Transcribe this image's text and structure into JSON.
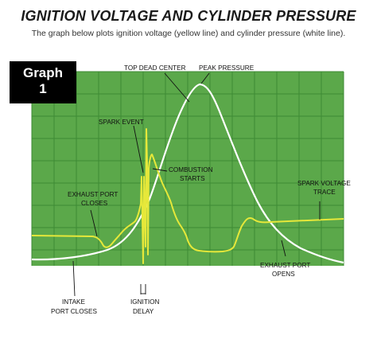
{
  "header": {
    "title": "IGNITION VOLTAGE AND CYLINDER PRESSURE",
    "subtitle": "The graph below plots ignition voltage (yellow line) and cylinder pressure (white line)."
  },
  "badge": {
    "line1": "Graph",
    "line2": "1"
  },
  "colors": {
    "plot_bg": "#5ba84a",
    "grid": "#3e8a34",
    "voltage": "#e6e83a",
    "pressure": "#ffffff"
  },
  "chart_data": {
    "type": "line",
    "title": "IGNITION VOLTAGE AND CYLINDER PRESSURE",
    "grid": true,
    "series": [
      {
        "name": "ignition voltage (yellow line)",
        "color": "#e6e83a"
      },
      {
        "name": "cylinder pressure (white line)",
        "color": "#ffffff"
      }
    ],
    "annotations": [
      {
        "id": "top-dead-center",
        "text": "TOP DEAD CENTER"
      },
      {
        "id": "peak-pressure",
        "text": "PEAK PRESSURE"
      },
      {
        "id": "spark-event",
        "text": "SPARK EVENT"
      },
      {
        "id": "combustion-starts",
        "lines": [
          "COMBUSTION",
          "STARTS"
        ]
      },
      {
        "id": "spark-voltage-trace",
        "lines": [
          "SPARK VOLTAGE",
          "TRACE"
        ]
      },
      {
        "id": "exhaust-port-closes",
        "lines": [
          "EXHAUST PORT",
          "CLOSES"
        ]
      },
      {
        "id": "exhaust-port-opens",
        "lines": [
          "EXHAUST PORT",
          "OPENS"
        ]
      },
      {
        "id": "intake-port-closes",
        "lines": [
          "INTAKE",
          "PORT CLOSES"
        ]
      },
      {
        "id": "ignition-delay",
        "lines": [
          "IGNITION",
          "DELAY"
        ]
      }
    ]
  }
}
